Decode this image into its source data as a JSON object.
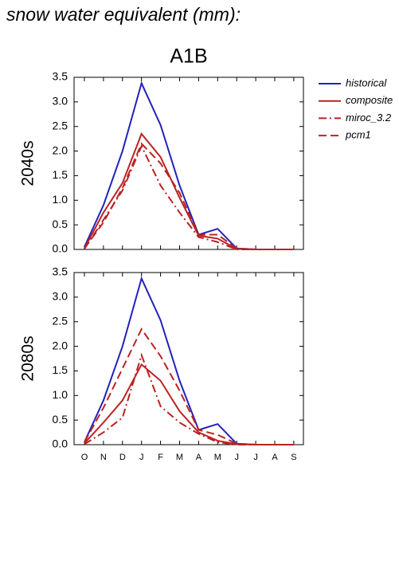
{
  "chart_data": [
    {
      "type": "line",
      "title": "snow water equivalent (mm):",
      "subtitle": "A1B",
      "y_label": "2040s",
      "ylim": [
        0,
        3.5
      ],
      "yticks": [
        {
          "value": 0,
          "label": "0.0"
        },
        0.5,
        {
          "value": 1,
          "label": "1.0"
        },
        1.5,
        {
          "value": 2,
          "label": "2.0"
        },
        2.5,
        {
          "value": 3,
          "label": "3.0"
        },
        3.5
      ],
      "legend": "right",
      "series": [
        {
          "name": "historical",
          "color": "#2222bb",
          "dash": "solid",
          "values": [
            0.05,
            0.9,
            2.0,
            3.38,
            2.53,
            1.3,
            0.3,
            0.42,
            0.02,
            0,
            0,
            0
          ]
        },
        {
          "name": "composite",
          "color": "#bb2222",
          "dash": "solid",
          "values": [
            0.02,
            0.75,
            1.35,
            2.35,
            1.88,
            1.05,
            0.28,
            0.22,
            0.01,
            0,
            0,
            0
          ]
        },
        {
          "name": "miroc_3.2",
          "color": "#bb2222",
          "dash": "dashdot",
          "values": [
            0.01,
            0.6,
            1.2,
            2.1,
            1.3,
            0.75,
            0.25,
            0.15,
            0,
            0,
            0,
            0
          ]
        },
        {
          "name": "pcm1",
          "color": "#bb2222",
          "dash": "dash",
          "values": [
            0.02,
            0.55,
            1.25,
            2.15,
            1.75,
            1.15,
            0.3,
            0.3,
            0.02,
            0,
            0,
            0
          ]
        }
      ]
    },
    {
      "type": "line",
      "y_label": "2080s",
      "categories": [
        "O",
        "N",
        "D",
        "J",
        "F",
        "M",
        "A",
        "M",
        "J",
        "J",
        "A",
        "S"
      ],
      "ylim": [
        0,
        3.5
      ],
      "yticks": [
        {
          "value": 0,
          "label": "0.0"
        },
        0.5,
        {
          "value": 1,
          "label": "1.0"
        },
        1.5,
        {
          "value": 2,
          "label": "2.0"
        },
        2.5,
        {
          "value": 3,
          "label": "3.0"
        },
        3.5
      ],
      "series": [
        {
          "color": "#2222bb",
          "dash": "solid",
          "values": [
            0.05,
            0.9,
            2.0,
            3.38,
            2.53,
            1.3,
            0.3,
            0.42,
            0.02,
            0,
            0,
            0
          ]
        },
        {
          "color": "#bb2222",
          "dash": "solid",
          "values": [
            0.03,
            0.45,
            0.9,
            1.63,
            1.3,
            0.68,
            0.25,
            0.08,
            0.01,
            0,
            0,
            0
          ]
        },
        {
          "color": "#bb2222",
          "dash": "dashdot",
          "values": [
            0.01,
            0.25,
            0.55,
            1.82,
            0.78,
            0.45,
            0.22,
            0.05,
            0,
            0,
            0,
            0
          ]
        },
        {
          "color": "#bb2222",
          "dash": "dash",
          "values": [
            0.05,
            0.75,
            1.55,
            2.35,
            1.8,
            1.1,
            0.3,
            0.2,
            0.02,
            0,
            0,
            0
          ]
        }
      ]
    }
  ]
}
